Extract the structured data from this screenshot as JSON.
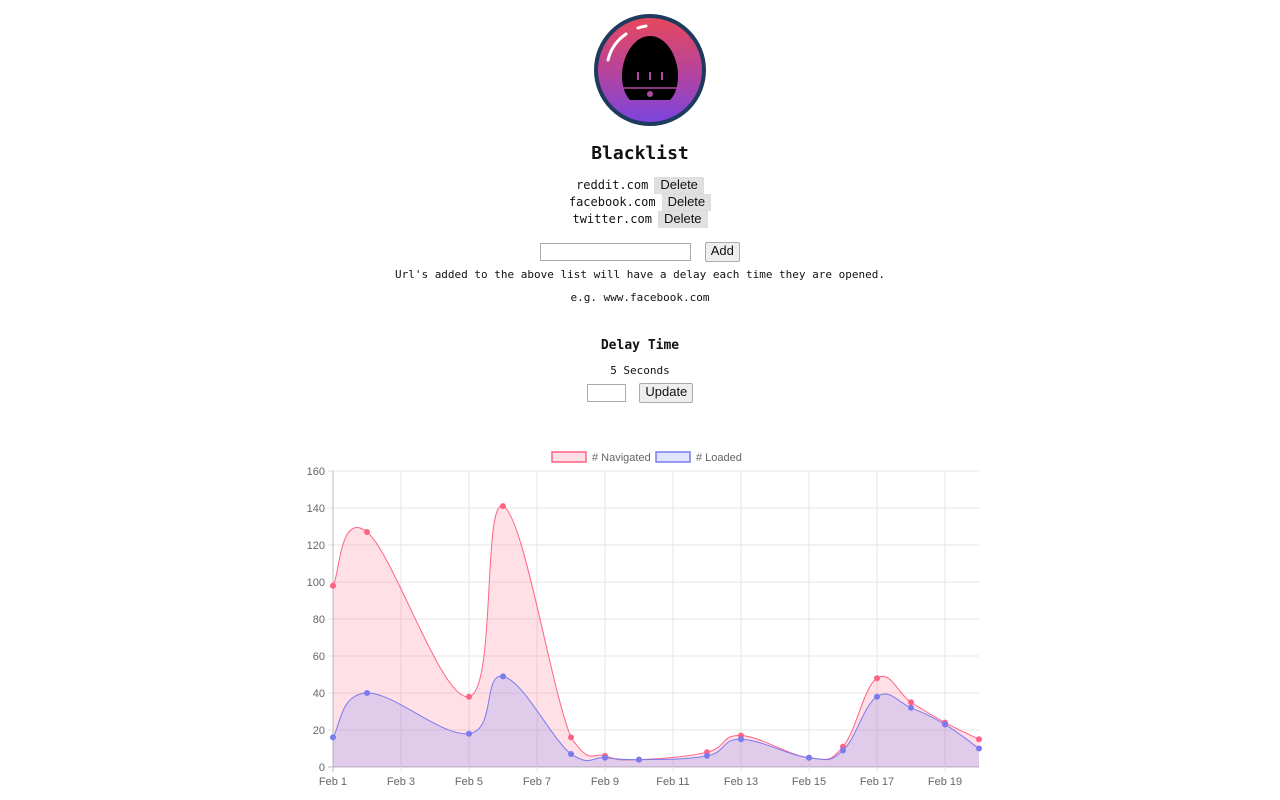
{
  "logo": {
    "name": "egg-timer-logo"
  },
  "blacklist": {
    "title": "Blacklist",
    "items": [
      {
        "url": "reddit.com",
        "delete_label": "Delete"
      },
      {
        "url": "facebook.com",
        "delete_label": "Delete"
      },
      {
        "url": "twitter.com",
        "delete_label": "Delete"
      }
    ],
    "input_value": "",
    "add_label": "Add",
    "help_text": "Url's added to the above list will have a delay each time they are opened.",
    "example_text": "e.g. www.facebook.com"
  },
  "delay": {
    "title": "Delay Time",
    "current": "5 Seconds",
    "input_value": "",
    "update_label": "Update"
  },
  "chart_data": {
    "type": "line",
    "filled": true,
    "x": [
      "Feb 1",
      "Feb 2",
      "Feb 5",
      "Feb 6",
      "Feb 8",
      "Feb 9",
      "Feb 10",
      "Feb 12",
      "Feb 13",
      "Feb 15",
      "Feb 16",
      "Feb 17",
      "Feb 18",
      "Feb 19",
      "Feb 20"
    ],
    "x_day": [
      1,
      2,
      5,
      6,
      8,
      9,
      10,
      12,
      13,
      15,
      16,
      17,
      18,
      19,
      20
    ],
    "xticks": [
      "Feb 1",
      "Feb 3",
      "Feb 5",
      "Feb 7",
      "Feb 9",
      "Feb 11",
      "Feb 13",
      "Feb 15",
      "Feb 17",
      "Feb 19"
    ],
    "ylim": [
      0,
      160
    ],
    "yticks": [
      0,
      20,
      40,
      60,
      80,
      100,
      120,
      140,
      160
    ],
    "grid": true,
    "legend": "top",
    "series": [
      {
        "name": "# Navigated",
        "color": "#ff6384",
        "fill": "rgba(255,99,132,0.2)",
        "values": [
          98,
          127,
          38,
          141,
          16,
          6,
          4,
          8,
          17,
          5,
          11,
          48,
          35,
          24,
          15
        ]
      },
      {
        "name": "# Loaded",
        "color": "#7b7bef",
        "fill": "rgba(100,120,255,0.2)",
        "values": [
          16,
          40,
          18,
          49,
          7,
          5,
          4,
          6,
          15,
          5,
          9,
          38,
          32,
          23,
          10
        ]
      }
    ]
  }
}
